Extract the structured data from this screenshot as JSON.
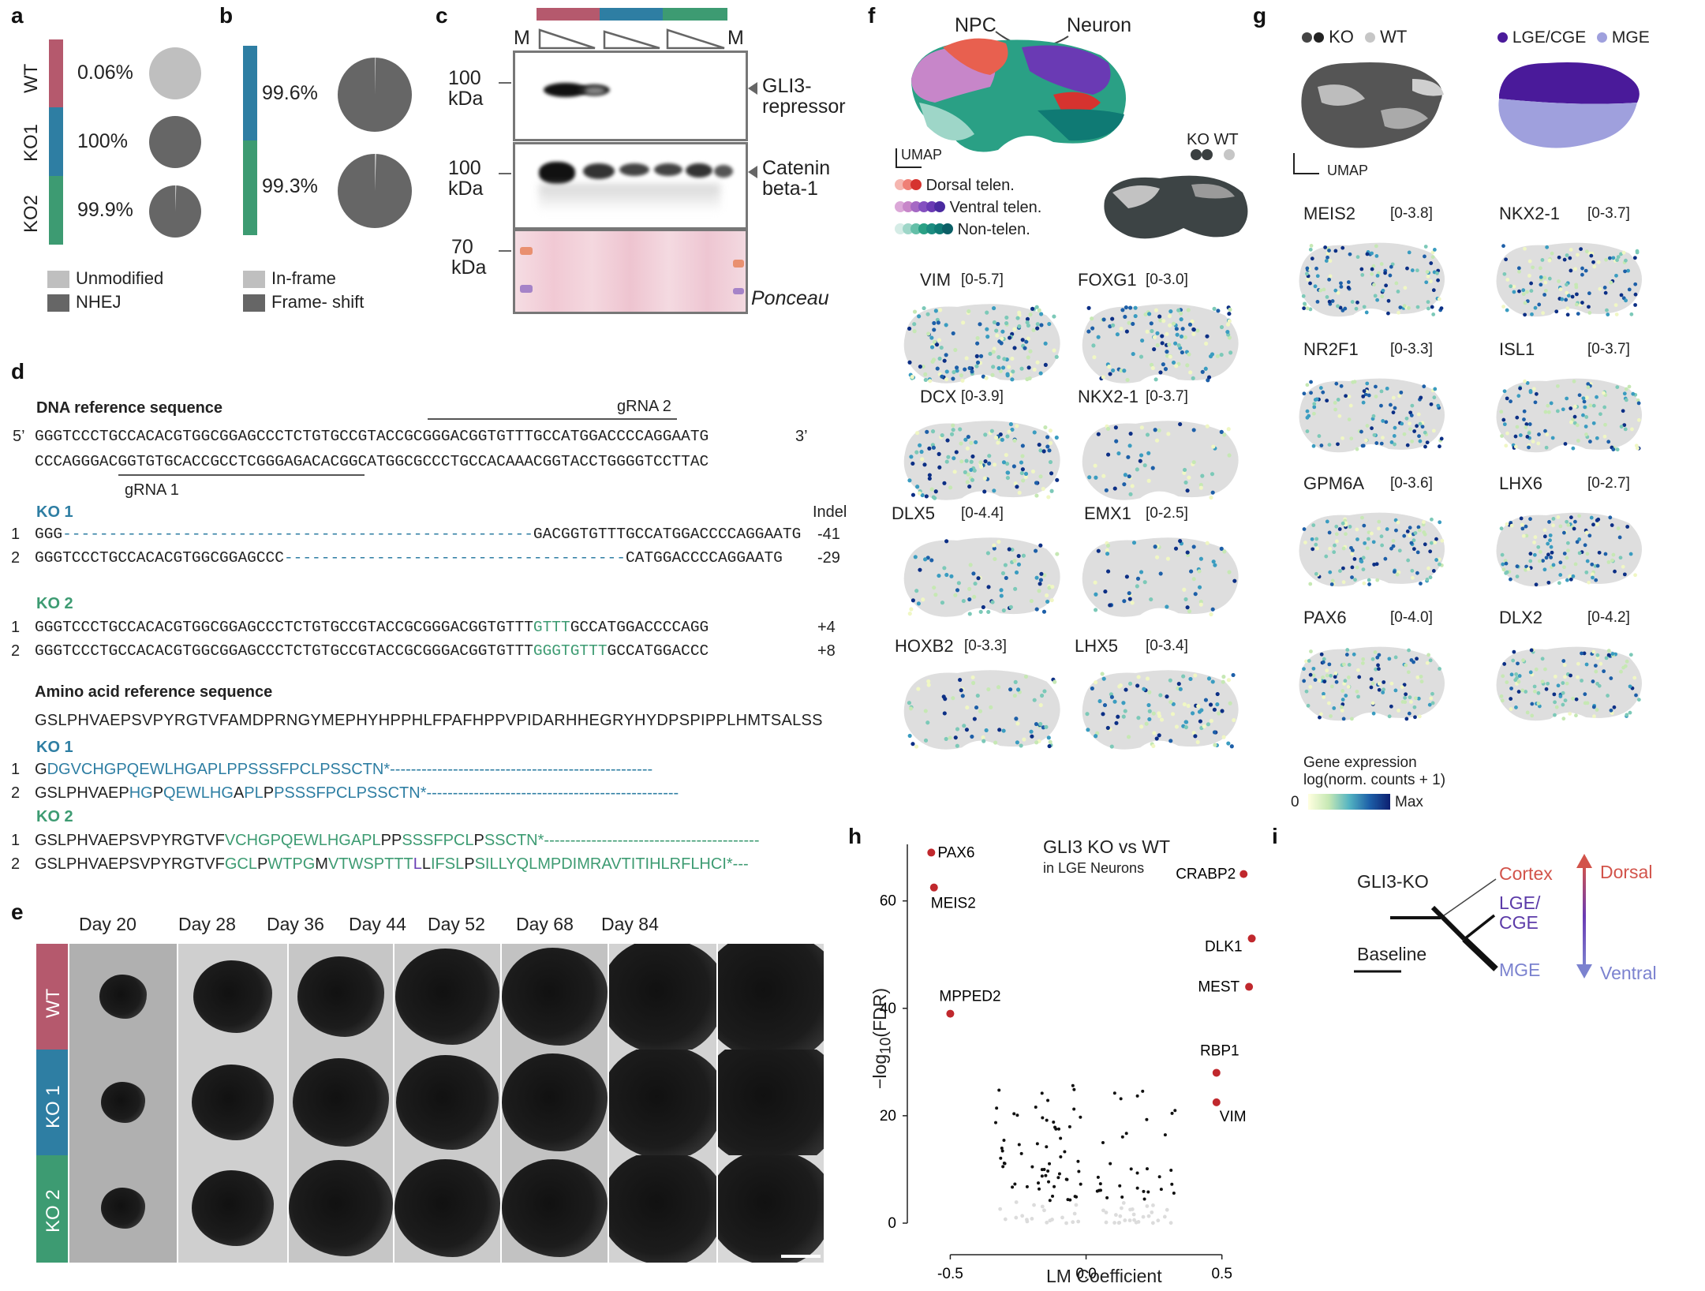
{
  "panels": {
    "a": "a",
    "b": "b",
    "c": "c",
    "d": "d",
    "e": "e",
    "f": "f",
    "g": "g",
    "h": "h",
    "i": "i"
  },
  "colors": {
    "wt": "#b5596d",
    "ko1": "#2e7ea3",
    "ko2": "#3d9b72",
    "unmodified": "#bfbfbf",
    "nhej": "#666666"
  },
  "panel_a": {
    "rows": [
      {
        "label": "WT",
        "value": "0.06%"
      },
      {
        "label": "KO1",
        "value": "100%"
      },
      {
        "label": "KO2",
        "value": "99.9%"
      }
    ],
    "legend": [
      "Unmodified",
      "NHEJ"
    ]
  },
  "panel_b": {
    "rows": [
      {
        "value": "99.6%"
      },
      {
        "value": "99.3%"
      }
    ],
    "legend": [
      "In-frame",
      "Frame- shift"
    ]
  },
  "panel_c": {
    "marker_left": "M",
    "marker_right": "M",
    "kda": [
      "100\nkDa",
      "100\nkDa",
      "70\nkDa"
    ],
    "band_labels": [
      "GLI3-\nrepressor",
      "Catenin\nbeta-1",
      "Ponceau"
    ]
  },
  "panel_d": {
    "dna_title": "DNA reference sequence",
    "grna2": "gRNA 2",
    "grna1": "gRNA 1",
    "prime5": "5’",
    "prime3": "3’",
    "dna_top": "GGGTCCCTGCCACACGTGGCGGAGCCCTCTGTGCCGTACCGCGGGACGGTGTTTGCCATGGACCCCAGGAATG",
    "dna_bottom": "CCCAGGGACGGTGTGCACCGCCTCGGGAGACACGGCATGGCGCCCTGCCACAAACGGTACCTGGGGTCCTTAC",
    "ko1_title": "KO 1",
    "indel_header": "Indel",
    "ko1": [
      {
        "n": "1",
        "seq_a": "GGG",
        "dash": "---------------------------------------------------",
        "seq_b": "GACGGTGTTTGCCATGGACCCCAGGAATG",
        "indel": "-41"
      },
      {
        "n": "2",
        "seq_a": "GGGTCCCTGCCACACGTGGCGGAGCCC",
        "dash": "-------------------------------------",
        "seq_b": "CATGGACCCCAGGAATG",
        "indel": "-29"
      }
    ],
    "ko2_title": "KO 2",
    "ko2": [
      {
        "n": "1",
        "seq_a": "GGGTCCCTGCCACACGTGGCGGAGCCCTCTGTGCCGTACCGCGGGACGGTGTTT",
        "ins": "GTTT",
        "seq_b": "GCCATGGACCCCAGG",
        "indel": "+4"
      },
      {
        "n": "2",
        "seq_a": "GGGTCCCTGCCACACGTGGCGGAGCCCTCTGTGCCGTACCGCGGGACGGTGTTT",
        "ins": "GGGTGTTT",
        "seq_b": "GCCATGGACCC",
        "indel": "+8"
      }
    ],
    "aa_title": "Amino acid reference sequence",
    "aa_ref": "GSLPHVAEPSVPYRGTVFAMDPRNGYMEPHYHPPHLFPAFHPPVPIDARHHEGRYHYDPSPIPPLHMTSALSS",
    "aa_ko1_title": "KO 1",
    "aa_ko1_1": {
      "n": "1",
      "a": "G",
      "b": "DGVCHGPQEWLHGAPLPPSSSFPCLPSSCTN*",
      "dash": "--------------------------------------------------"
    },
    "aa_ko1_2": {
      "n": "2",
      "a": "GSLPHVAEP",
      "b": "HG",
      "c": "P",
      "d": "QEWLHG",
      "e": "A",
      "f": "PL",
      "g": "P",
      "h": "PSSSFPCLPSSCTN*",
      "dash": "------------------------------------------------"
    },
    "aa_ko2_title": "KO 2",
    "aa_ko2_1": {
      "n": "1",
      "a": "GSLPHVAEPSVPYRGTVF",
      "b": "VCHGPQEWLHGAPL",
      "c": "PP",
      "d": "SSSFPCL",
      "e": "P",
      "f": "SSCTN*",
      "dash": "-----------------------------------------"
    },
    "aa_ko2_2": {
      "n": "2",
      "a": "GSLPHVAEPSVPYRGTVF",
      "b": "GCL",
      "c": "P",
      "d": "WTPG",
      "e": "M",
      "f": "VTWSPTTT",
      "g": "L",
      "h": "L",
      "i": "IFSL",
      "j": "P",
      "k": "SILLYQLMPDIMRAVTITIHLRFLHCI*---"
    }
  },
  "panel_e": {
    "days": [
      "Day 20",
      "Day 28",
      "Day 36",
      "Day 44",
      "Day 52",
      "Day 68",
      "Day 84"
    ],
    "rows": [
      "WT",
      "KO 1",
      "KO 2"
    ]
  },
  "panel_f": {
    "npc": "NPC",
    "neuron": "Neuron",
    "umap": "UMAP",
    "legend": [
      "Dorsal telen.",
      "Ventral telen.",
      "Non-telen."
    ],
    "ko": "KO",
    "wt": "WT",
    "genes": [
      {
        "name": "VIM",
        "range": "[0-5.7]"
      },
      {
        "name": "FOXG1",
        "range": "[0-3.0]"
      },
      {
        "name": "DCX",
        "range": "[0-3.9]"
      },
      {
        "name": "NKX2-1",
        "range": "[0-3.7]"
      },
      {
        "name": "DLX5",
        "range": "[0-4.4]"
      },
      {
        "name": "EMX1",
        "range": "[0-2.5]"
      },
      {
        "name": "HOXB2",
        "range": "[0-3.3]"
      },
      {
        "name": "LHX5",
        "range": "[0-3.4]"
      }
    ]
  },
  "panel_g": {
    "ko": "KO",
    "wt": "WT",
    "lge": "LGE/CGE",
    "mge": "MGE",
    "umap": "UMAP",
    "genes": [
      {
        "name": "MEIS2",
        "range": "[0-3.8]"
      },
      {
        "name": "NKX2-1",
        "range": "[0-3.7]"
      },
      {
        "name": "NR2F1",
        "range": "[0-3.3]"
      },
      {
        "name": "ISL1",
        "range": "[0-3.7]"
      },
      {
        "name": "GPM6A",
        "range": "[0-3.6]"
      },
      {
        "name": "LHX6",
        "range": "[0-2.7]"
      },
      {
        "name": "PAX6",
        "range": "[0-4.0]"
      },
      {
        "name": "DLX2",
        "range": "[0-4.2]"
      }
    ],
    "cbar_title": "Gene expression\nlog(norm. counts + 1)",
    "cbar_min": "0",
    "cbar_max": "Max"
  },
  "chart_data": {
    "type": "scatter",
    "title": "GLI3 KO vs WT",
    "subtitle": "in LGE Neurons",
    "xlabel": "LM Coefficient",
    "ylabel": "−log10(FDR)",
    "xlim": [
      -0.6,
      0.62
    ],
    "ylim": [
      0,
      72
    ],
    "xticks": [
      "-0.5",
      "0.0",
      "0.5"
    ],
    "yticks": [
      "0",
      "20",
      "40",
      "60"
    ],
    "labeled_points": [
      {
        "label": "PAX6",
        "x": -0.57,
        "y": 69
      },
      {
        "label": "MEIS2",
        "x": -0.56,
        "y": 62.5
      },
      {
        "label": "MPPED2",
        "x": -0.5,
        "y": 39
      },
      {
        "label": "CRABP2",
        "x": 0.58,
        "y": 65
      },
      {
        "label": "DLK1",
        "x": 0.61,
        "y": 53
      },
      {
        "label": "MEST",
        "x": 0.6,
        "y": 44
      },
      {
        "label": "RBP1",
        "x": 0.48,
        "y": 28
      },
      {
        "label": "VIM",
        "x": 0.48,
        "y": 22.5
      }
    ]
  },
  "panel_h_labels": {
    "title": "GLI3 KO vs WT",
    "subtitle": "in LGE Neurons",
    "xlabel": "LM Coefficient",
    "ylabel": "−log",
    "ylabel_sub": "10",
    "ylabel_end": "(FDR)"
  },
  "panel_i": {
    "glikO": "GLI3-KO",
    "baseline": "Baseline",
    "cortex": "Cortex",
    "lge": "LGE/\nCGE",
    "mge": "MGE",
    "dorsal": "Dorsal",
    "ventral": "Ventral"
  }
}
